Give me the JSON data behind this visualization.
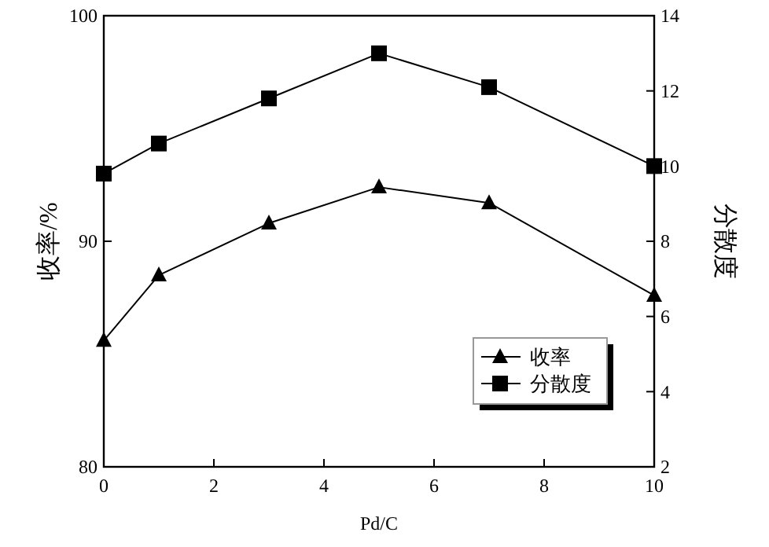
{
  "chart_data": {
    "type": "line",
    "xlabel": "Pd/C",
    "ylabel": "收率/%",
    "y2label": "分散度",
    "x": [
      0,
      1,
      3,
      5,
      7,
      10
    ],
    "series": [
      {
        "name": "收率",
        "color": "#000000",
        "marker": "triangle",
        "values": [
          85.6,
          88.5,
          90.8,
          92.4,
          91.7,
          87.6
        ]
      },
      {
        "name": "分散度",
        "color": "#000000",
        "marker": "square",
        "axis": "y2",
        "values": [
          9.8,
          10.6,
          11.8,
          13.0,
          12.1,
          10.0
        ]
      }
    ],
    "xlim": [
      0,
      10
    ],
    "xticks": [
      0,
      2,
      4,
      6,
      8,
      10
    ],
    "ylim": [
      80,
      100
    ],
    "yticks": [
      80,
      90,
      100
    ],
    "y2lim": [
      2,
      14
    ],
    "y2ticks": [
      2,
      4,
      6,
      8,
      10,
      12,
      14
    ],
    "legend": "bottom right",
    "grid": false,
    "line_style": "solid"
  }
}
